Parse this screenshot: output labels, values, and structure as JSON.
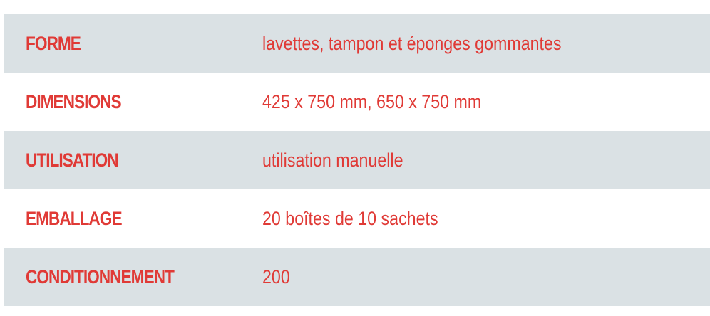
{
  "colors": {
    "text": "#e03a36",
    "shaded_row": "#dae1e4"
  },
  "rows": [
    {
      "label": "FORME",
      "value": "lavettes, tampon et éponges gommantes"
    },
    {
      "label": "DIMENSIONS",
      "value": "425 x 750 mm, 650 x 750 mm"
    },
    {
      "label": "UTILISATION",
      "value": "utilisation manuelle"
    },
    {
      "label": "EMBALLAGE",
      "value": "20 boîtes de 10 sachets"
    },
    {
      "label": "CONDITIONNEMENT",
      "value": "200"
    }
  ]
}
